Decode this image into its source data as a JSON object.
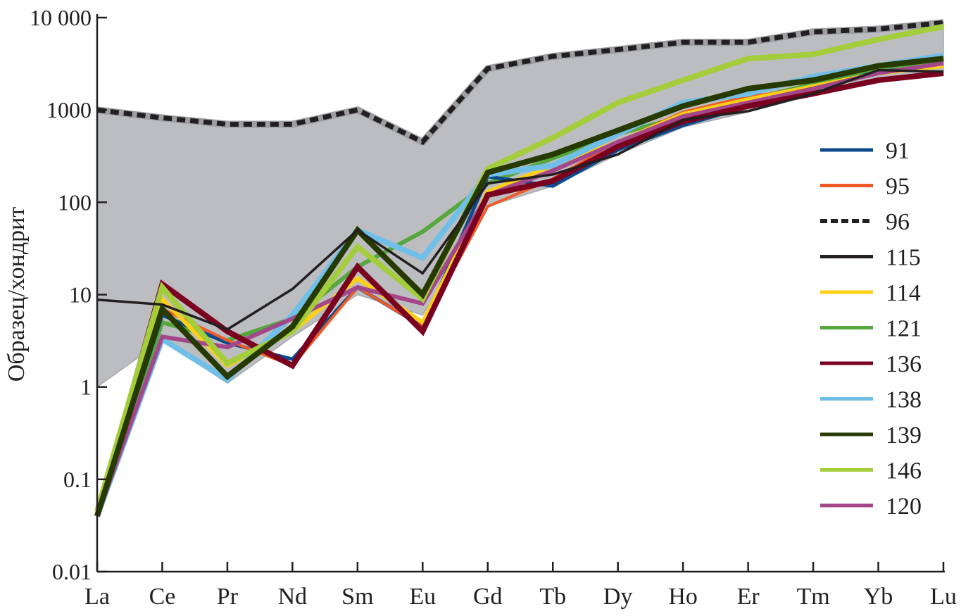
{
  "chart_data": {
    "type": "line",
    "title": "",
    "xlabel": "",
    "ylabel": "Образец/хондрит",
    "yscale": "log",
    "ylim": [
      0.01,
      10000
    ],
    "yticks": [
      {
        "value": 0.01,
        "label": "0.01"
      },
      {
        "value": 0.1,
        "label": "0.1"
      },
      {
        "value": 1,
        "label": "1"
      },
      {
        "value": 10,
        "label": "10"
      },
      {
        "value": 100,
        "label": "100"
      },
      {
        "value": 1000,
        "label": "1000"
      },
      {
        "value": 10000,
        "label": "10 000"
      }
    ],
    "categories": [
      "La",
      "Ce",
      "Pr",
      "Nd",
      "Sm",
      "Eu",
      "Gd",
      "Tb",
      "Dy",
      "Ho",
      "Er",
      "Tm",
      "Yb",
      "Lu"
    ],
    "legend_position": "right",
    "envelope": {
      "color": "#bcbdc0",
      "upper": [
        1000,
        820,
        700,
        700,
        1000,
        450,
        2800,
        3800,
        4500,
        5400,
        5400,
        7500,
        7800,
        9000
      ],
      "lower": [
        1,
        3.2,
        1.1,
        3.5,
        10,
        6,
        90,
        150,
        330,
        650,
        950,
        1450,
        2050,
        2450
      ]
    },
    "series": [
      {
        "name": "91",
        "color": "#0b4a8c",
        "width": 5,
        "dash": false,
        "values": [
          0.04,
          6,
          3,
          2,
          12,
          4.5,
          190,
          150,
          370,
          680,
          1100,
          1700,
          2600,
          3000
        ]
      },
      {
        "name": "95",
        "color": "#f05a28",
        "width": 4,
        "dash": false,
        "values": [
          0.04,
          7,
          3.2,
          1.7,
          12,
          4.5,
          90,
          180,
          450,
          950,
          1400,
          1700,
          2500,
          3000
        ]
      },
      {
        "name": "96",
        "color": "#231f20",
        "width": 7,
        "dash": true,
        "values": [
          1000,
          820,
          700,
          700,
          1000,
          450,
          2800,
          3800,
          4500,
          5400,
          5400,
          7000,
          7500,
          8800
        ]
      },
      {
        "name": "115",
        "color": "#231f20",
        "width": 3.5,
        "dash": false,
        "values": [
          8.8,
          7.8,
          4.2,
          11.5,
          50,
          17,
          160,
          200,
          330,
          780,
          970,
          1500,
          2700,
          2600
        ]
      },
      {
        "name": "114",
        "color": "#fdd017",
        "width": 6,
        "dash": false,
        "values": [
          0.04,
          9,
          1.7,
          4,
          15,
          5,
          130,
          250,
          450,
          900,
          1300,
          1800,
          2500,
          3000
        ]
      },
      {
        "name": "121",
        "color": "#56a73e",
        "width": 6,
        "dash": false,
        "values": [
          0.04,
          5,
          3.2,
          5.5,
          20,
          48,
          160,
          300,
          550,
          850,
          1300,
          1900,
          2700,
          3400
        ]
      },
      {
        "name": "136",
        "color": "#7a0020",
        "width": 8,
        "dash": false,
        "values": [
          0.04,
          13,
          4,
          1.7,
          20,
          4,
          120,
          170,
          400,
          750,
          1100,
          1500,
          2100,
          2500
        ]
      },
      {
        "name": "138",
        "color": "#6fbfe9",
        "width": 8,
        "dash": false,
        "values": [
          0.04,
          3.3,
          1.2,
          6,
          50,
          25,
          200,
          250,
          550,
          1200,
          1500,
          2300,
          3000,
          3900
        ]
      },
      {
        "name": "139",
        "color": "#263a00",
        "width": 8,
        "dash": false,
        "values": [
          0.04,
          7,
          1.3,
          4.5,
          50,
          10,
          210,
          330,
          600,
          1100,
          1700,
          2100,
          3000,
          3600
        ]
      },
      {
        "name": "146",
        "color": "#a3cd3a",
        "width": 8,
        "dash": false,
        "values": [
          0.045,
          12,
          1.8,
          4,
          33,
          9,
          230,
          500,
          1200,
          2100,
          3600,
          4000,
          5800,
          8000
        ]
      },
      {
        "name": "120",
        "color": "#a4478a",
        "width": 6,
        "dash": false,
        "values": [
          0.04,
          3.5,
          2.7,
          5.5,
          12,
          8,
          120,
          220,
          450,
          850,
          1200,
          1700,
          2500,
          3200
        ]
      }
    ]
  }
}
